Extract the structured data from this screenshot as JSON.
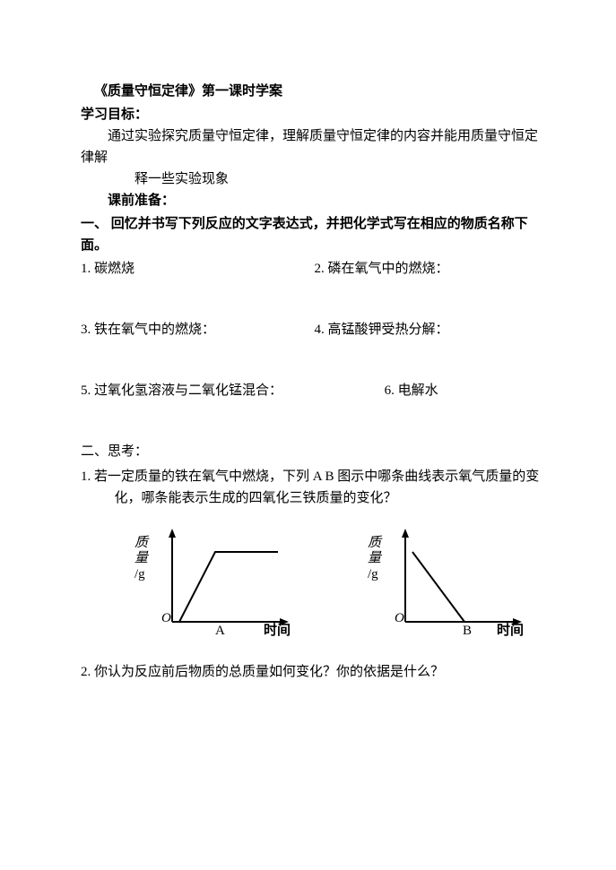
{
  "title": "《质量守恒定律》第一课时学案",
  "goals_label": "学习目标：",
  "goal_line1": "通过实验探究质量守恒定律，理解质量守恒定律的内容并能用质量守恒定律解",
  "goal_line2": "释一些实验现象",
  "prep_label": "课前准备：",
  "section1": "一、 回忆并书写下列反应的文字表达式，并把化学式写在相应的物质名称下面。",
  "items": {
    "i1": "1. 碳燃烧",
    "i2": "2. 磷在氧气中的燃烧：",
    "i3": "3. 铁在氧气中的燃烧：",
    "i4": "4. 高锰酸钾受热分解：",
    "i5": "5.  过氧化氢溶液与二氧化锰混合：",
    "i6": "6. 电解水"
  },
  "section2": "二、思考：",
  "q1_line1": "1.  若一定质量的铁在氧气中燃烧，下列 A   B 图示中哪条曲线表示氧气质量的变",
  "q1_line2": "化，哪条能表示生成的四氧化三铁质量的变化？",
  "chart": {
    "y_label_1": "质",
    "y_label_2": "量",
    "y_unit": "/g",
    "x_label": "时间",
    "origin": "O",
    "letterA": "A",
    "letterB": "B",
    "axis_color": "#000000",
    "line_color": "#000000",
    "chartA": {
      "points": [
        [
          50,
          108
        ],
        [
          90,
          30
        ],
        [
          160,
          30
        ]
      ]
    },
    "chartB": {
      "points": [
        [
          50,
          30
        ],
        [
          108,
          108
        ],
        [
          160,
          108
        ]
      ]
    }
  },
  "q2": "2. 你认为反应前后物质的总质量如何变化？你的依据是什么？"
}
